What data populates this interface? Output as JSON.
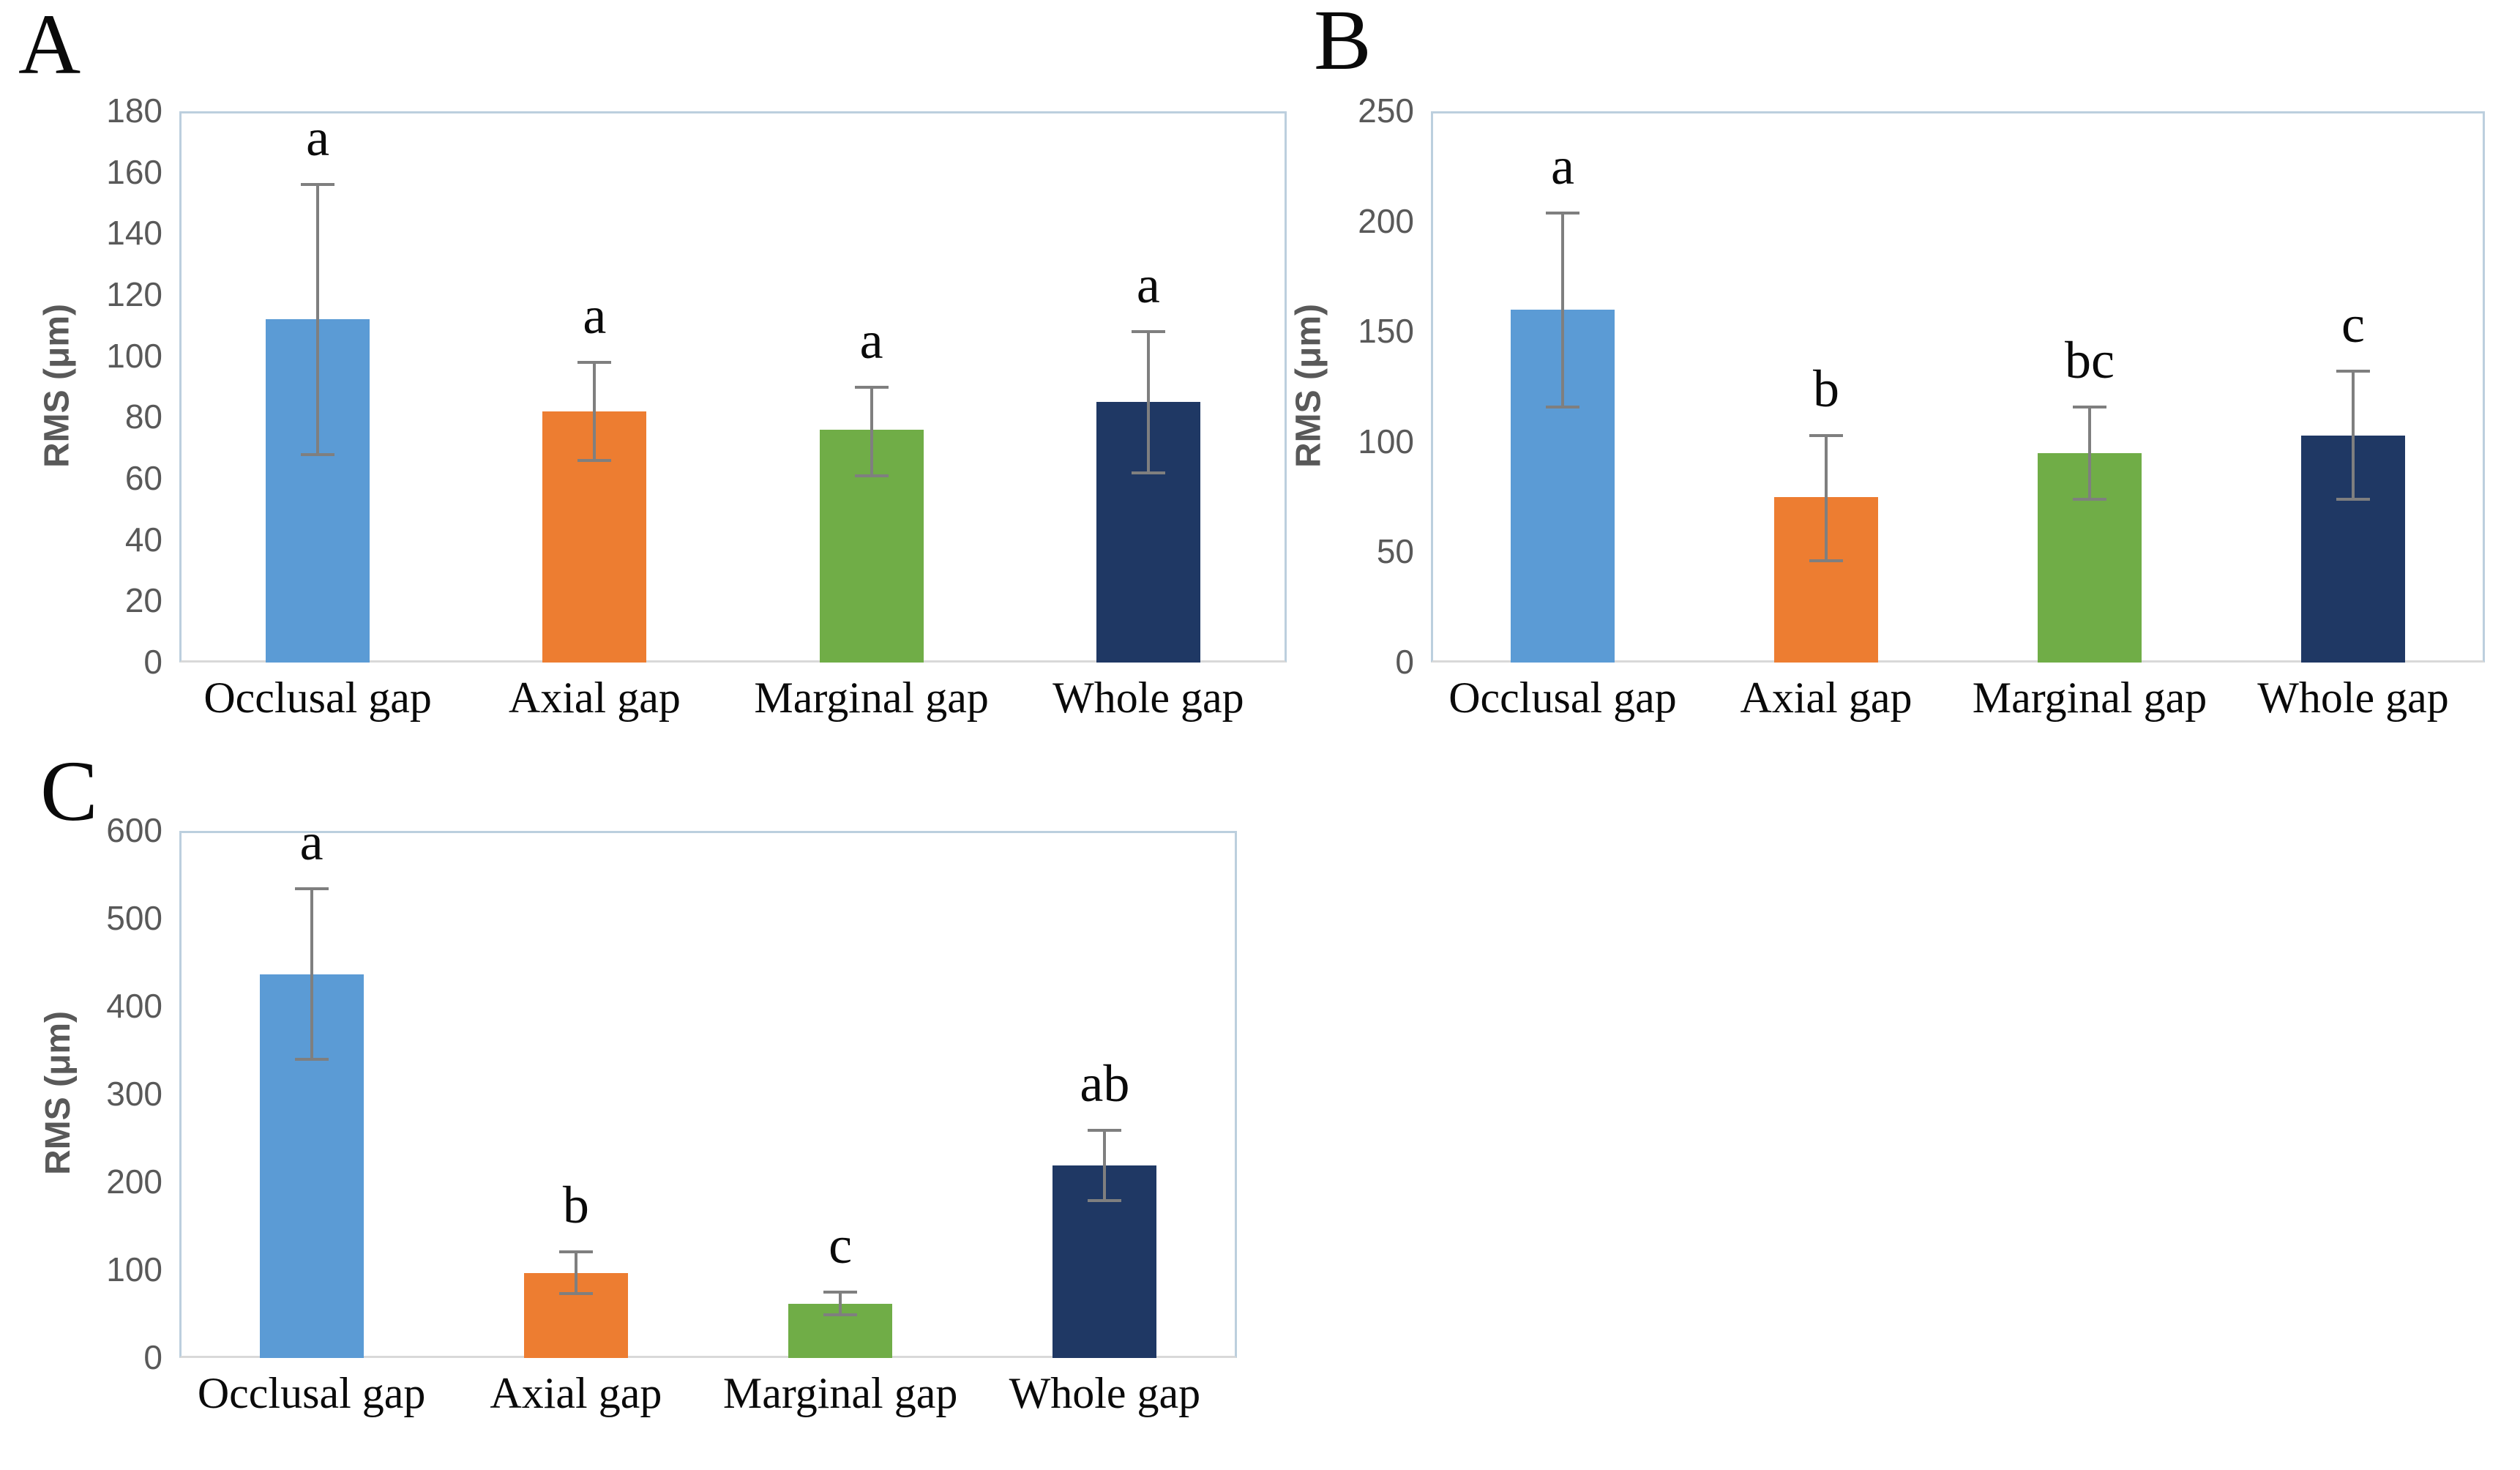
{
  "figure": {
    "description_visible_text_only": true,
    "panels": [
      {
        "label": "A"
      },
      {
        "label": "B"
      },
      {
        "label": "C"
      }
    ],
    "style": {
      "plot_border_color": "#bccfde",
      "axis_line_color": "#d9d9d9",
      "tick_text_color": "#595959",
      "error_bar_color": "#7f7f7f",
      "text_color": "#0a0a0a",
      "bar_palette": {
        "blue": "#5b9bd5",
        "orange": "#ed7d31",
        "green": "#70ad47",
        "navy": "#1f3864"
      }
    }
  },
  "chart_data": [
    {
      "type": "bar",
      "panel_label": "A",
      "title": "",
      "xlabel": "",
      "ylabel": "RMS (μm)",
      "ylim": [
        0,
        180
      ],
      "yticks": [
        0,
        20,
        40,
        60,
        80,
        100,
        120,
        140,
        160,
        180
      ],
      "grid": false,
      "legend": "none",
      "categories": [
        "Occlusal gap",
        "Axial gap",
        "Marginal gap",
        "Whole gap"
      ],
      "values": [
        112,
        82,
        76,
        85
      ],
      "error_up": [
        44,
        16,
        14,
        23
      ],
      "error_down": [
        44,
        16,
        15,
        23
      ],
      "sig_letters": [
        "a",
        "a",
        "a",
        "a"
      ],
      "bar_colors": [
        "#5b9bd5",
        "#ed7d31",
        "#70ad47",
        "#1f3864"
      ]
    },
    {
      "type": "bar",
      "panel_label": "B",
      "title": "",
      "xlabel": "",
      "ylabel": "RMS (μm)",
      "ylim": [
        0,
        250
      ],
      "yticks": [
        0,
        50,
        100,
        150,
        200,
        250
      ],
      "grid": false,
      "legend": "none",
      "categories": [
        "Occlusal gap",
        "Axial gap",
        "Marginal gap",
        "Whole gap"
      ],
      "values": [
        160,
        75,
        95,
        103
      ],
      "error_up": [
        44,
        28,
        21,
        29
      ],
      "error_down": [
        44,
        29,
        21,
        29
      ],
      "sig_letters": [
        "a",
        "b",
        "bc",
        "c"
      ],
      "bar_colors": [
        "#5b9bd5",
        "#ed7d31",
        "#70ad47",
        "#1f3864"
      ]
    },
    {
      "type": "bar",
      "panel_label": "C",
      "title": "",
      "xlabel": "",
      "ylabel": "RMS (μm)",
      "ylim": [
        0,
        600
      ],
      "yticks": [
        0,
        100,
        200,
        300,
        400,
        500,
        600
      ],
      "grid": false,
      "legend": "none",
      "categories": [
        "Occlusal gap",
        "Axial gap",
        "Marginal gap",
        "Whole gap"
      ],
      "values": [
        437,
        97,
        62,
        219
      ],
      "error_up": [
        97,
        24,
        13,
        40
      ],
      "error_down": [
        97,
        24,
        13,
        40
      ],
      "sig_letters": [
        "a",
        "b",
        "c",
        "ab"
      ],
      "bar_colors": [
        "#5b9bd5",
        "#ed7d31",
        "#70ad47",
        "#1f3864"
      ]
    }
  ]
}
